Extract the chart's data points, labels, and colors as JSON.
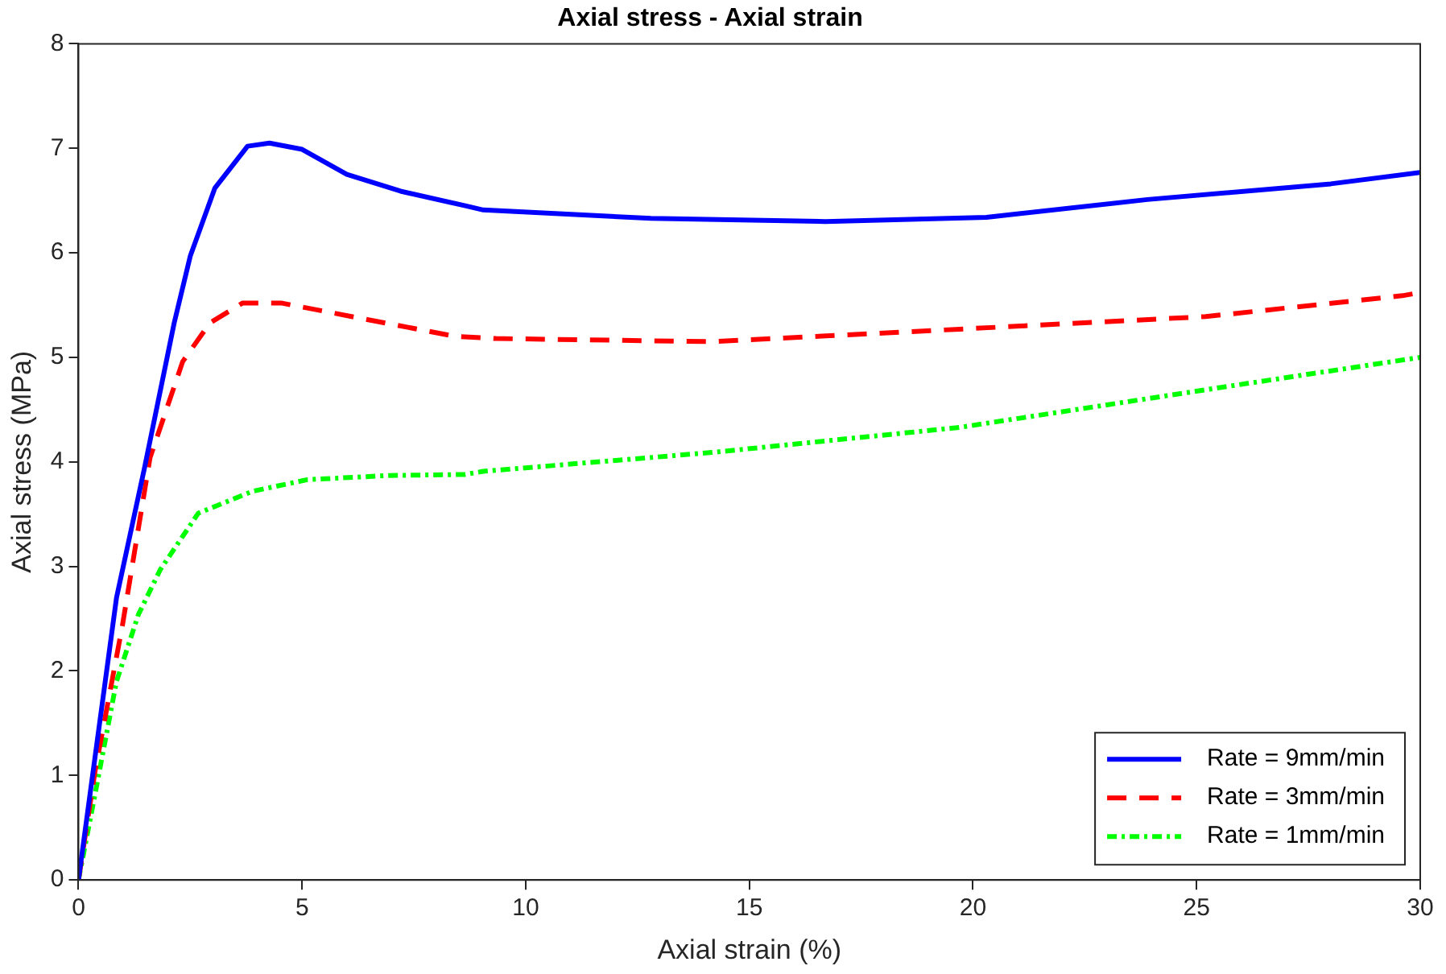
{
  "chart_data": {
    "type": "line",
    "title": "Axial stress - Axial strain",
    "xlabel": "Axial strain (%)",
    "ylabel": "Axial stress (MPa)",
    "xlim": [
      0,
      30
    ],
    "xticks": [
      0,
      5,
      10,
      15,
      20,
      25,
      30
    ],
    "ylim": [
      0,
      8
    ],
    "yticks": [
      0,
      1,
      2,
      3,
      4,
      5,
      6,
      7,
      8
    ],
    "grid": false,
    "legend": "bottom right",
    "marker": "none",
    "series": [
      {
        "name": "Rate = 9mm/min",
        "color": "#0000ff",
        "line_style": "solid",
        "x": [
          0,
          0.85,
          1.47,
          2.14,
          2.5,
          3.05,
          3.78,
          4.27,
          5.0,
          6.0,
          7.2,
          8.65,
          9.05,
          12.8,
          16.7,
          20.3,
          23.9,
          28.0,
          30
        ],
        "values": [
          0,
          2.7,
          3.93,
          5.33,
          5.97,
          6.62,
          7.02,
          7.05,
          6.99,
          6.75,
          6.59,
          6.45,
          6.41,
          6.33,
          6.3,
          6.34,
          6.51,
          6.66,
          6.77
        ]
      },
      {
        "name": "Rate = 3mm/min",
        "color": "#ff0000",
        "line_style": "dashed",
        "x": [
          0,
          0.37,
          0.98,
          1.6,
          2.33,
          2.94,
          3.67,
          4.53,
          6.48,
          8.43,
          9.34,
          14.16,
          19.7,
          25.2,
          29.6,
          30
        ],
        "values": [
          0,
          1.04,
          2.43,
          4.04,
          4.96,
          5.33,
          5.52,
          5.52,
          5.36,
          5.2,
          5.18,
          5.15,
          5.27,
          5.39,
          5.59,
          5.62
        ]
      },
      {
        "name": "Rate = 1mm/min",
        "color": "#00ff00",
        "line_style": "dotted",
        "x": [
          0,
          0.37,
          0.85,
          1.34,
          1.83,
          2.68,
          3.9,
          5.12,
          6.96,
          8.65,
          9.05,
          14.16,
          19.7,
          25.2,
          30
        ],
        "values": [
          0,
          0.82,
          1.9,
          2.54,
          2.97,
          3.51,
          3.72,
          3.83,
          3.87,
          3.88,
          3.91,
          4.09,
          4.33,
          4.69,
          5.0
        ]
      }
    ]
  }
}
